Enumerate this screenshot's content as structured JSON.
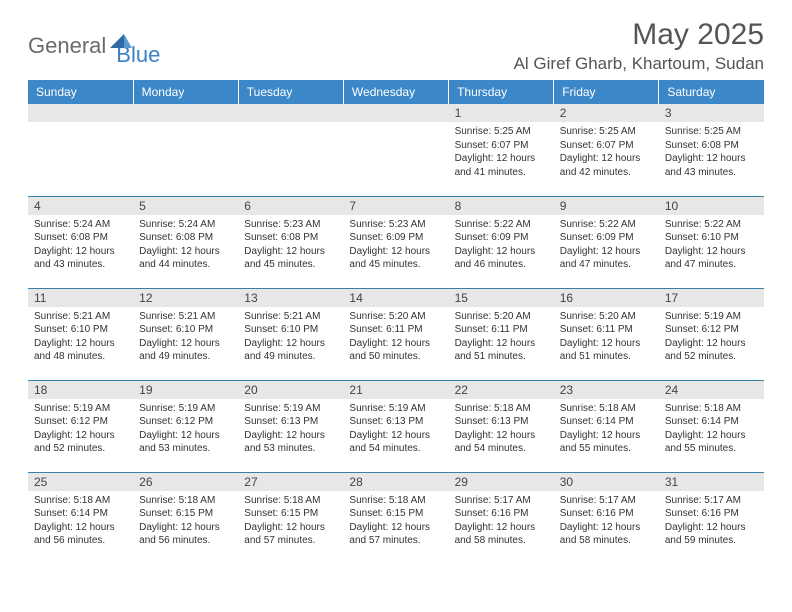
{
  "logo": {
    "word1": "General",
    "word2": "Blue"
  },
  "title": "May 2025",
  "location": "Al Giref Gharb, Khartoum, Sudan",
  "colors": {
    "header_bg": "#3b87c8",
    "header_text": "#ffffff",
    "daynum_bg": "#e7e7e7",
    "rule": "#3b7fa8",
    "title_text": "#555555",
    "logo_gray": "#6b6b6b",
    "logo_blue": "#3b7fc4"
  },
  "fonts": {
    "title_size_pt": 22,
    "location_size_pt": 13,
    "header_size_pt": 9,
    "daynum_size_pt": 9,
    "content_size_pt": 7.5
  },
  "weekdays": [
    "Sunday",
    "Monday",
    "Tuesday",
    "Wednesday",
    "Thursday",
    "Friday",
    "Saturday"
  ],
  "weeks": [
    [
      null,
      null,
      null,
      null,
      {
        "n": "1",
        "sr": "5:25 AM",
        "ss": "6:07 PM",
        "dl": "12 hours and 41 minutes."
      },
      {
        "n": "2",
        "sr": "5:25 AM",
        "ss": "6:07 PM",
        "dl": "12 hours and 42 minutes."
      },
      {
        "n": "3",
        "sr": "5:25 AM",
        "ss": "6:08 PM",
        "dl": "12 hours and 43 minutes."
      }
    ],
    [
      {
        "n": "4",
        "sr": "5:24 AM",
        "ss": "6:08 PM",
        "dl": "12 hours and 43 minutes."
      },
      {
        "n": "5",
        "sr": "5:24 AM",
        "ss": "6:08 PM",
        "dl": "12 hours and 44 minutes."
      },
      {
        "n": "6",
        "sr": "5:23 AM",
        "ss": "6:08 PM",
        "dl": "12 hours and 45 minutes."
      },
      {
        "n": "7",
        "sr": "5:23 AM",
        "ss": "6:09 PM",
        "dl": "12 hours and 45 minutes."
      },
      {
        "n": "8",
        "sr": "5:22 AM",
        "ss": "6:09 PM",
        "dl": "12 hours and 46 minutes."
      },
      {
        "n": "9",
        "sr": "5:22 AM",
        "ss": "6:09 PM",
        "dl": "12 hours and 47 minutes."
      },
      {
        "n": "10",
        "sr": "5:22 AM",
        "ss": "6:10 PM",
        "dl": "12 hours and 47 minutes."
      }
    ],
    [
      {
        "n": "11",
        "sr": "5:21 AM",
        "ss": "6:10 PM",
        "dl": "12 hours and 48 minutes."
      },
      {
        "n": "12",
        "sr": "5:21 AM",
        "ss": "6:10 PM",
        "dl": "12 hours and 49 minutes."
      },
      {
        "n": "13",
        "sr": "5:21 AM",
        "ss": "6:10 PM",
        "dl": "12 hours and 49 minutes."
      },
      {
        "n": "14",
        "sr": "5:20 AM",
        "ss": "6:11 PM",
        "dl": "12 hours and 50 minutes."
      },
      {
        "n": "15",
        "sr": "5:20 AM",
        "ss": "6:11 PM",
        "dl": "12 hours and 51 minutes."
      },
      {
        "n": "16",
        "sr": "5:20 AM",
        "ss": "6:11 PM",
        "dl": "12 hours and 51 minutes."
      },
      {
        "n": "17",
        "sr": "5:19 AM",
        "ss": "6:12 PM",
        "dl": "12 hours and 52 minutes."
      }
    ],
    [
      {
        "n": "18",
        "sr": "5:19 AM",
        "ss": "6:12 PM",
        "dl": "12 hours and 52 minutes."
      },
      {
        "n": "19",
        "sr": "5:19 AM",
        "ss": "6:12 PM",
        "dl": "12 hours and 53 minutes."
      },
      {
        "n": "20",
        "sr": "5:19 AM",
        "ss": "6:13 PM",
        "dl": "12 hours and 53 minutes."
      },
      {
        "n": "21",
        "sr": "5:19 AM",
        "ss": "6:13 PM",
        "dl": "12 hours and 54 minutes."
      },
      {
        "n": "22",
        "sr": "5:18 AM",
        "ss": "6:13 PM",
        "dl": "12 hours and 54 minutes."
      },
      {
        "n": "23",
        "sr": "5:18 AM",
        "ss": "6:14 PM",
        "dl": "12 hours and 55 minutes."
      },
      {
        "n": "24",
        "sr": "5:18 AM",
        "ss": "6:14 PM",
        "dl": "12 hours and 55 minutes."
      }
    ],
    [
      {
        "n": "25",
        "sr": "5:18 AM",
        "ss": "6:14 PM",
        "dl": "12 hours and 56 minutes."
      },
      {
        "n": "26",
        "sr": "5:18 AM",
        "ss": "6:15 PM",
        "dl": "12 hours and 56 minutes."
      },
      {
        "n": "27",
        "sr": "5:18 AM",
        "ss": "6:15 PM",
        "dl": "12 hours and 57 minutes."
      },
      {
        "n": "28",
        "sr": "5:18 AM",
        "ss": "6:15 PM",
        "dl": "12 hours and 57 minutes."
      },
      {
        "n": "29",
        "sr": "5:17 AM",
        "ss": "6:16 PM",
        "dl": "12 hours and 58 minutes."
      },
      {
        "n": "30",
        "sr": "5:17 AM",
        "ss": "6:16 PM",
        "dl": "12 hours and 58 minutes."
      },
      {
        "n": "31",
        "sr": "5:17 AM",
        "ss": "6:16 PM",
        "dl": "12 hours and 59 minutes."
      }
    ]
  ],
  "labels": {
    "sunrise": "Sunrise: ",
    "sunset": "Sunset: ",
    "daylight": "Daylight: "
  }
}
